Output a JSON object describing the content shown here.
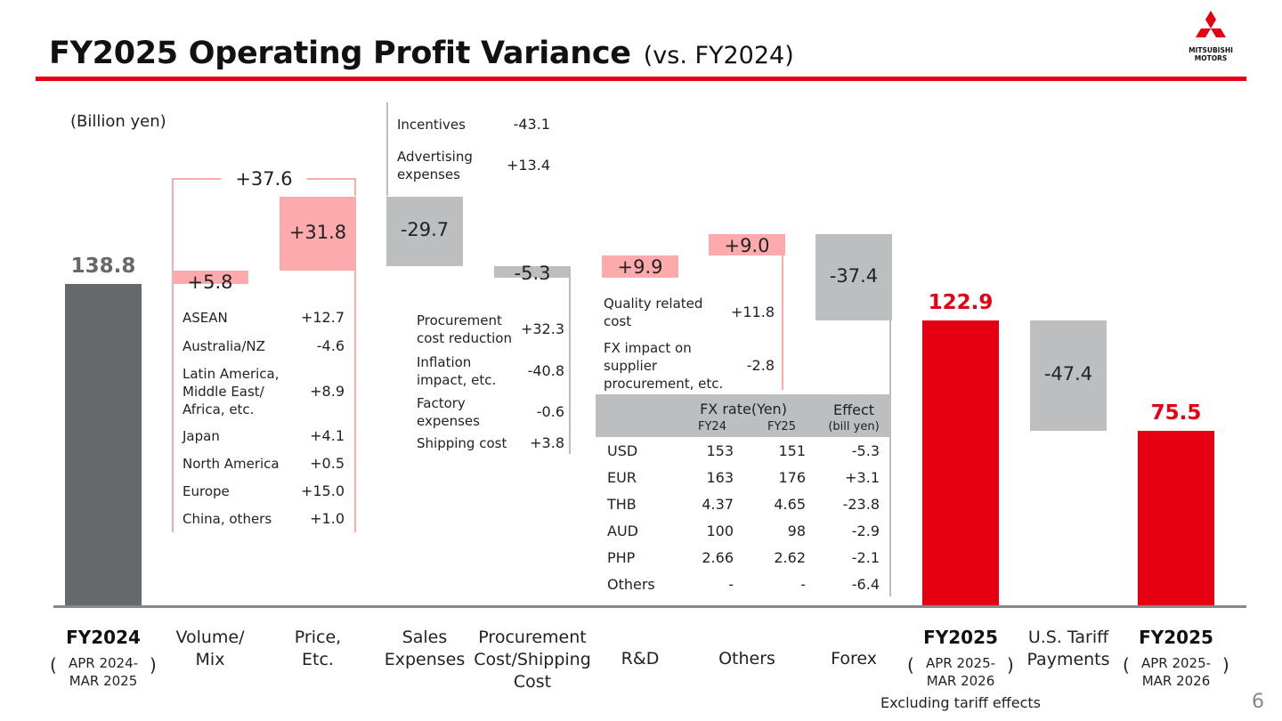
{
  "header": {
    "title": "FY2025 Operating Profit Variance",
    "subtitle": "(vs. FY2024)",
    "logo_line1": "MITSUBISHI",
    "logo_line2": "MOTORS",
    "page_number": "6"
  },
  "colors": {
    "accent_red": "#e60012",
    "positive_pink": "#fdaaad",
    "negative_gray": "#bcbec0",
    "base_gray": "#66696c"
  },
  "chart_data": {
    "type": "bar",
    "subtype": "waterfall",
    "unit_label": "(Billion yen)",
    "categories": [
      {
        "name": "FY2024",
        "sub": "APR 2024-\nMAR 2025",
        "value": 138.8,
        "label": "138.8",
        "kind": "total"
      },
      {
        "name": "Volume/\nMix",
        "value": 5.8,
        "label": "+5.8",
        "kind": "delta"
      },
      {
        "name": "Price,\nEtc.",
        "value": 31.8,
        "label": "+31.8",
        "kind": "delta"
      },
      {
        "name": "Sales\nExpenses",
        "value": -29.7,
        "label": "-29.7",
        "kind": "delta"
      },
      {
        "name": "Procurement\nCost/Shipping\nCost",
        "value": -5.3,
        "label": "-5.3",
        "kind": "delta"
      },
      {
        "name": "R&D",
        "value": 9.9,
        "label": "+9.9",
        "kind": "delta"
      },
      {
        "name": "Others",
        "value": 9.0,
        "label": "+9.0",
        "kind": "delta"
      },
      {
        "name": "Forex",
        "value": -37.4,
        "label": "-37.4",
        "kind": "delta"
      },
      {
        "name": "FY2025",
        "sub": "APR 2025-\nMAR 2026",
        "value": 122.9,
        "label": "122.9",
        "kind": "total"
      },
      {
        "name": "U.S. Tariff\nPayments",
        "value": -47.4,
        "label": "-47.4",
        "kind": "delta"
      },
      {
        "name": "FY2025",
        "sub": "APR 2025-\nMAR 2026",
        "value": 75.5,
        "label": "75.5",
        "kind": "total"
      }
    ],
    "combined_label": "+37.6",
    "note": "Excluding tariff effects",
    "breakdowns": {
      "volume_mix": [
        {
          "label": "ASEAN",
          "value": "+12.7"
        },
        {
          "label": "Australia/NZ",
          "value": "-4.6"
        },
        {
          "label": "Latin America,\nMiddle East/\nAfrica, etc.",
          "value": "+8.9"
        },
        {
          "label": "Japan",
          "value": "+4.1"
        },
        {
          "label": "North America",
          "value": "+0.5"
        },
        {
          "label": "Europe",
          "value": "+15.0"
        },
        {
          "label": "China, others",
          "value": "+1.0"
        }
      ],
      "sales_expenses": [
        {
          "label": "Incentives",
          "value": "-43.1"
        },
        {
          "label": "Advertising\nexpenses",
          "value": "+13.4"
        }
      ],
      "procurement": [
        {
          "label": "Procurement\ncost reduction",
          "value": "+32.3"
        },
        {
          "label": "Inflation\nimpact, etc.",
          "value": "-40.8"
        },
        {
          "label": "Factory\nexpenses",
          "value": "-0.6"
        },
        {
          "label": "Shipping cost",
          "value": "+3.8"
        }
      ],
      "others": [
        {
          "label": "Quality related\ncost",
          "value": "+11.8"
        },
        {
          "label": "FX impact on\nsupplier\nprocurement, etc.",
          "value": "-2.8"
        }
      ]
    },
    "fx_table": {
      "header_rate": "FX rate(Yen)",
      "header_fy24": "FY24",
      "header_fy25": "FY25",
      "header_effect": "Effect",
      "header_effect_unit": "(bill yen)",
      "rows": [
        {
          "currency": "USD",
          "fy24": "153",
          "fy25": "151",
          "effect": "-5.3"
        },
        {
          "currency": "EUR",
          "fy24": "163",
          "fy25": "176",
          "effect": "+3.1"
        },
        {
          "currency": "THB",
          "fy24": "4.37",
          "fy25": "4.65",
          "effect": "-23.8"
        },
        {
          "currency": "AUD",
          "fy24": "100",
          "fy25": "98",
          "effect": "-2.9"
        },
        {
          "currency": "PHP",
          "fy24": "2.66",
          "fy25": "2.62",
          "effect": "-2.1"
        },
        {
          "currency": "Others",
          "fy24": "-",
          "fy25": "-",
          "effect": "-6.4"
        }
      ]
    }
  }
}
